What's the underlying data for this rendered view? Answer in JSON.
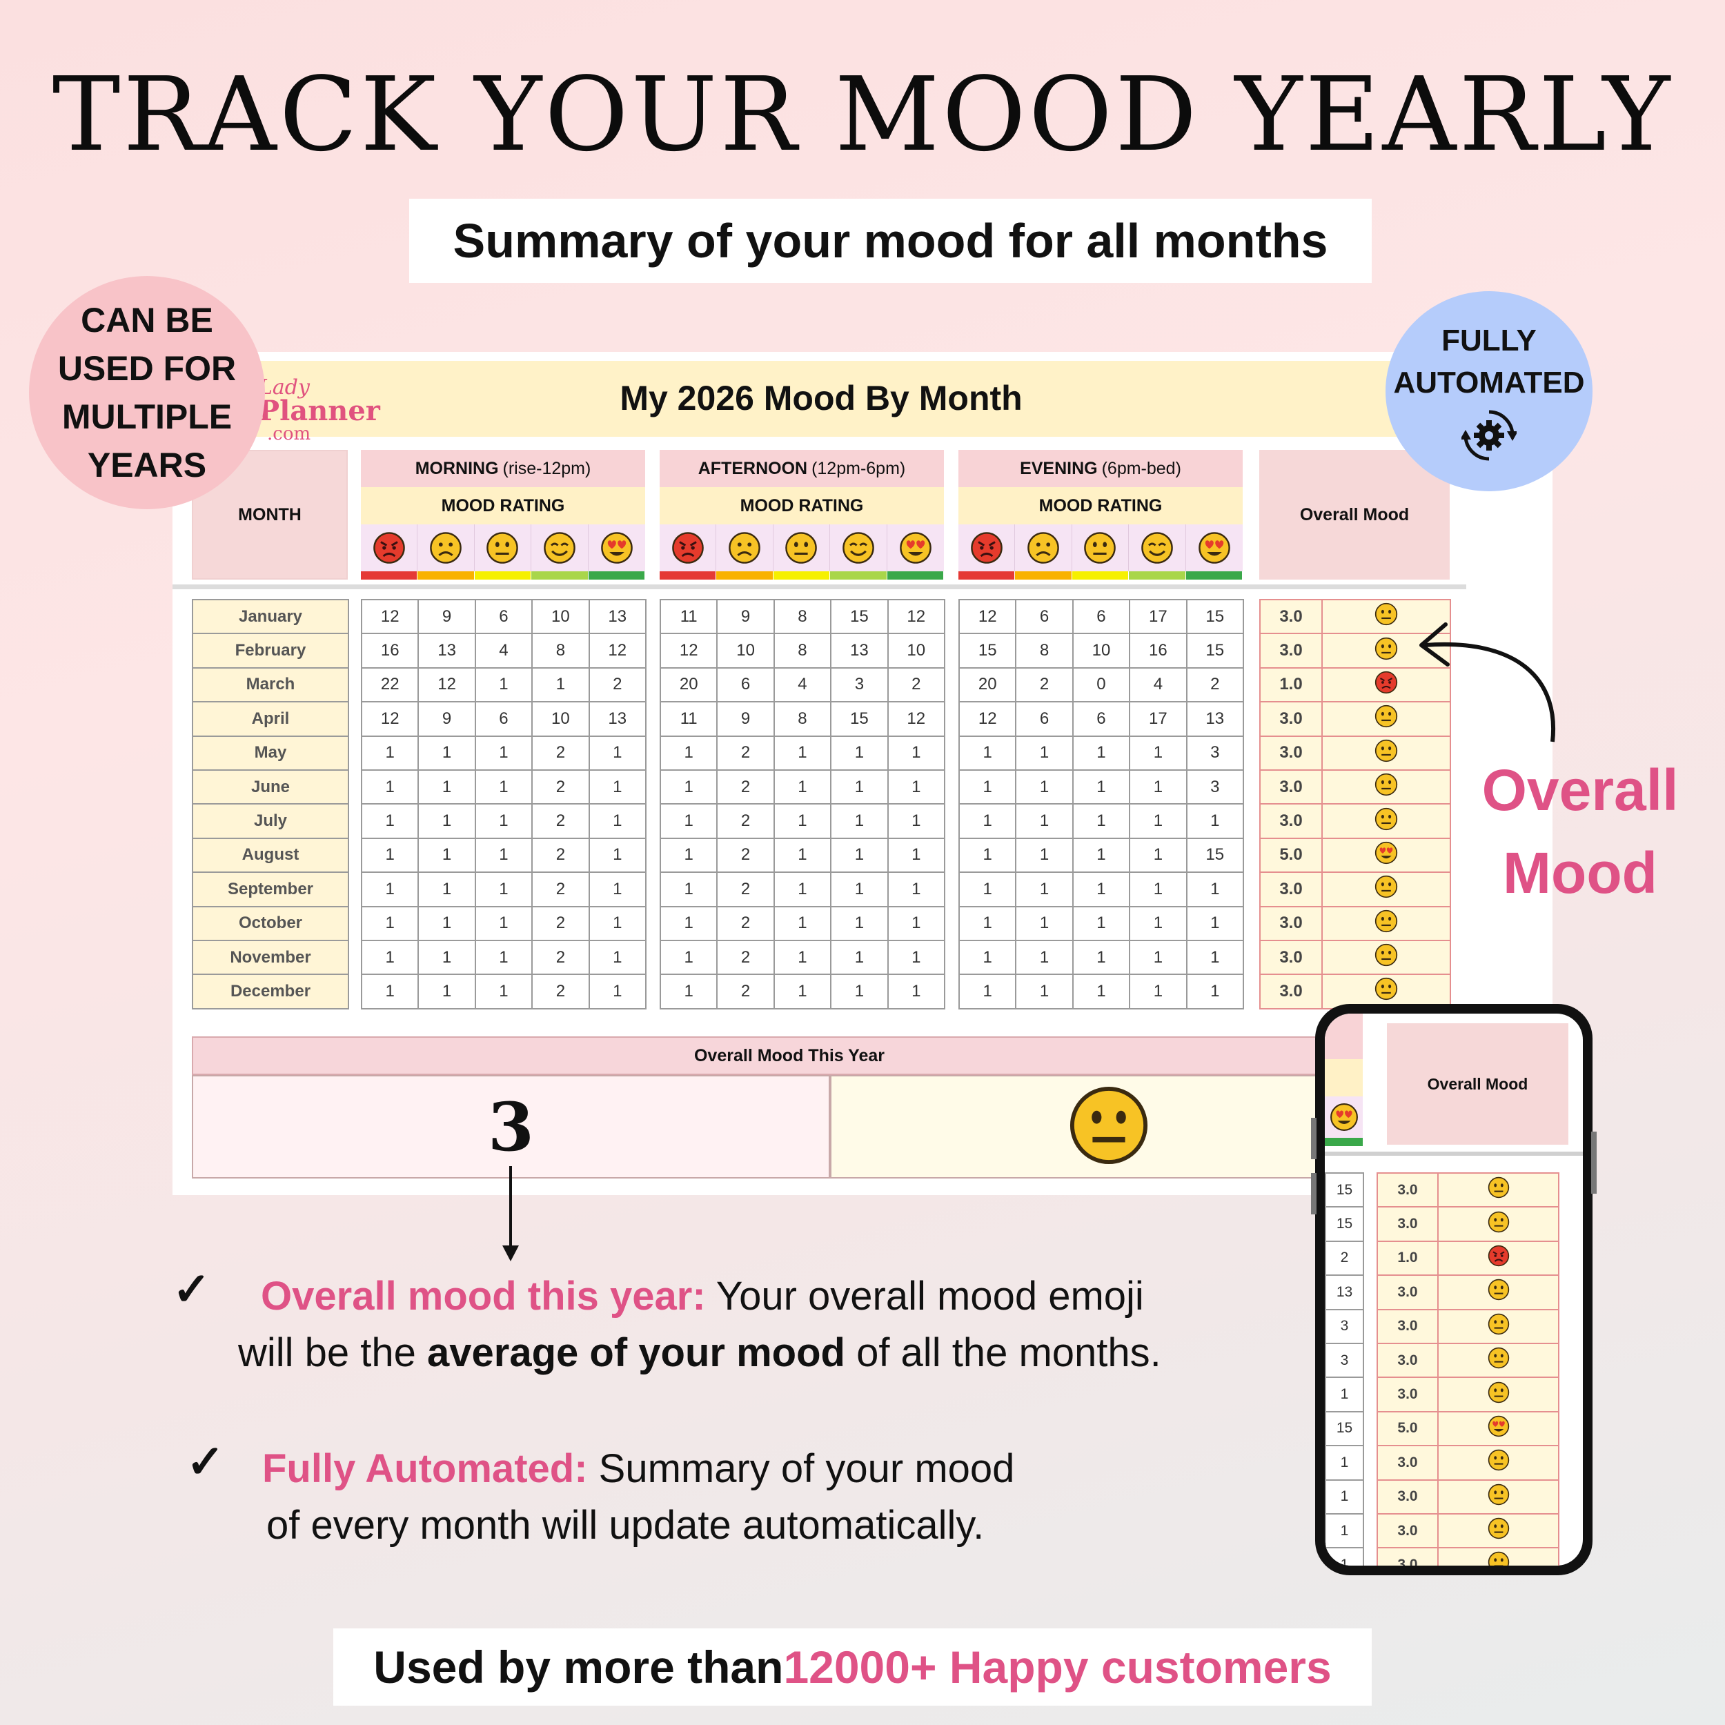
{
  "header": {
    "title": "TRACK YOUR MOOD YEARLY",
    "subtitle": "Summary of your mood for all months"
  },
  "badges": {
    "multi_years": [
      "CAN BE",
      "USED FOR",
      "MULTIPLE",
      "YEARS"
    ],
    "automated": [
      "FULLY",
      "AUTOMATED"
    ],
    "automated_icon": "gear-sync-icon"
  },
  "sheet": {
    "logo": [
      "Lady",
      "Planner",
      ".com"
    ],
    "title": "My 2026 Mood By Month",
    "month_header": "MONTH",
    "rating_label": "MOOD RATING",
    "overall_header": "Overall Mood",
    "periods": [
      {
        "name": "MORNING",
        "range": "(rise-12pm)"
      },
      {
        "name": "AFTERNOON",
        "range": "(12pm-6pm)"
      },
      {
        "name": "EVENING",
        "range": "(6pm-bed)"
      }
    ],
    "face_icons": [
      "angry-face-icon",
      "frowning-face-icon",
      "neutral-face-icon",
      "smiling-face-icon",
      "heart-eyes-face-icon"
    ],
    "rating_colors": [
      "#e53935",
      "#f9b200",
      "#f6f000",
      "#a9d64a",
      "#3aa84a"
    ],
    "months": [
      "January",
      "February",
      "March",
      "April",
      "May",
      "June",
      "July",
      "August",
      "September",
      "October",
      "November",
      "December"
    ],
    "morning": [
      [
        "12",
        "9",
        "6",
        "10",
        "13"
      ],
      [
        "16",
        "13",
        "4",
        "8",
        "12"
      ],
      [
        "22",
        "12",
        "1",
        "1",
        "2"
      ],
      [
        "12",
        "9",
        "6",
        "10",
        "13"
      ],
      [
        "1",
        "1",
        "1",
        "2",
        "1"
      ],
      [
        "1",
        "1",
        "1",
        "2",
        "1"
      ],
      [
        "1",
        "1",
        "1",
        "2",
        "1"
      ],
      [
        "1",
        "1",
        "1",
        "2",
        "1"
      ],
      [
        "1",
        "1",
        "1",
        "2",
        "1"
      ],
      [
        "1",
        "1",
        "1",
        "2",
        "1"
      ],
      [
        "1",
        "1",
        "1",
        "2",
        "1"
      ],
      [
        "1",
        "1",
        "1",
        "2",
        "1"
      ]
    ],
    "afternoon": [
      [
        "11",
        "9",
        "8",
        "15",
        "12"
      ],
      [
        "12",
        "10",
        "8",
        "13",
        "10"
      ],
      [
        "20",
        "6",
        "4",
        "3",
        "2"
      ],
      [
        "11",
        "9",
        "8",
        "15",
        "12"
      ],
      [
        "1",
        "2",
        "1",
        "1",
        "1"
      ],
      [
        "1",
        "2",
        "1",
        "1",
        "1"
      ],
      [
        "1",
        "2",
        "1",
        "1",
        "1"
      ],
      [
        "1",
        "2",
        "1",
        "1",
        "1"
      ],
      [
        "1",
        "2",
        "1",
        "1",
        "1"
      ],
      [
        "1",
        "2",
        "1",
        "1",
        "1"
      ],
      [
        "1",
        "2",
        "1",
        "1",
        "1"
      ],
      [
        "1",
        "2",
        "1",
        "1",
        "1"
      ]
    ],
    "evening": [
      [
        "12",
        "6",
        "6",
        "17",
        "15"
      ],
      [
        "15",
        "8",
        "10",
        "16",
        "15"
      ],
      [
        "20",
        "2",
        "0",
        "4",
        "2"
      ],
      [
        "12",
        "6",
        "6",
        "17",
        "13"
      ],
      [
        "1",
        "1",
        "1",
        "1",
        "3"
      ],
      [
        "1",
        "1",
        "1",
        "1",
        "3"
      ],
      [
        "1",
        "1",
        "1",
        "1",
        "1"
      ],
      [
        "1",
        "1",
        "1",
        "1",
        "15"
      ],
      [
        "1",
        "1",
        "1",
        "1",
        "1"
      ],
      [
        "1",
        "1",
        "1",
        "1",
        "1"
      ],
      [
        "1",
        "1",
        "1",
        "1",
        "1"
      ],
      [
        "1",
        "1",
        "1",
        "1",
        "1"
      ]
    ],
    "overall_values": [
      "3.0",
      "3.0",
      "1.0",
      "3.0",
      "3.0",
      "3.0",
      "3.0",
      "5.0",
      "3.0",
      "3.0",
      "3.0",
      "3.0"
    ],
    "overall_emojis": [
      "neutral-face-icon",
      "neutral-face-icon",
      "angry-face-icon",
      "neutral-face-icon",
      "neutral-face-icon",
      "neutral-face-icon",
      "neutral-face-icon",
      "heart-eyes-face-icon",
      "neutral-face-icon",
      "neutral-face-icon",
      "neutral-face-icon",
      "neutral-face-icon"
    ],
    "year_header": "Overall Mood This Year",
    "year_value": "3",
    "year_emoji": "neutral-face-icon"
  },
  "callout": {
    "overall_mood": [
      "Overall",
      "Mood"
    ]
  },
  "phone": {
    "overall_header": "Overall Mood",
    "evening_last_col": [
      "15",
      "15",
      "2",
      "13",
      "3",
      "3",
      "1",
      "15",
      "1",
      "1",
      "1",
      "1"
    ]
  },
  "bullets": [
    {
      "highlight": "Overall mood this year:",
      "line1_rest": " Your overall mood emoji",
      "line2_pre": "will be the ",
      "line2_bold": "average of your mood",
      "line2_post": " of all the months."
    },
    {
      "highlight": "Fully Automated:",
      "line1_rest": " Summary of your mood",
      "line2": "of every month will update automatically."
    }
  ],
  "footer": {
    "text": "Used by more than ",
    "highlight": "12000+ Happy customers"
  }
}
